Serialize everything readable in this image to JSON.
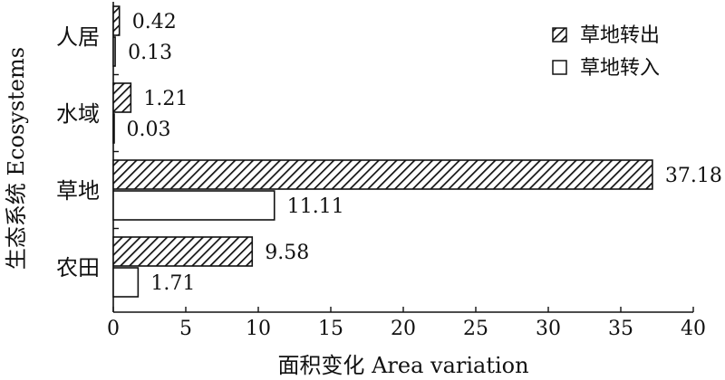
{
  "chart_data": {
    "type": "bar",
    "orientation": "horizontal",
    "categories": [
      "人居",
      "水域",
      "草地",
      "农田"
    ],
    "series": [
      {
        "name": "草地转出",
        "values": [
          0.42,
          1.21,
          37.18,
          9.58
        ],
        "value_labels": [
          "0.42",
          "1.21",
          "37.18",
          "9.58"
        ],
        "pattern": "diagonal-hatch"
      },
      {
        "name": "草地转入",
        "values": [
          0.13,
          0.03,
          11.11,
          1.71
        ],
        "value_labels": [
          "0.13",
          "0.03",
          "11.11",
          "1.71"
        ],
        "pattern": "empty"
      }
    ],
    "xlabel": "面积变化 Area variation",
    "ylabel": "生态系统 Ecosystems",
    "xlim": [
      0,
      40
    ],
    "xticks": [
      0,
      5,
      10,
      15,
      20,
      25,
      30,
      35,
      40
    ],
    "legend_position": "top-right",
    "grid": false,
    "colors": {
      "bar_stroke": "#111111",
      "hatch": "#111111",
      "background": "#ffffff"
    }
  }
}
